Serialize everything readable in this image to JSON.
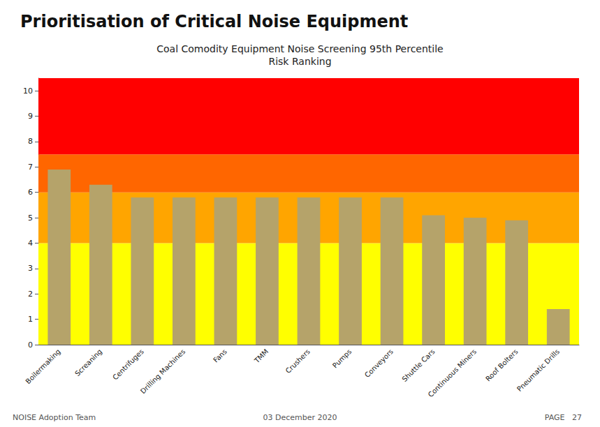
{
  "chart_data": {
    "type": "bar",
    "title": "Prioritisation of Critical Noise Equipment",
    "subtitle": "Coal Comodity Equipment Noise Screening 95th Percentile\nRisk Ranking",
    "categories": [
      "Boilermaking",
      "Screaning",
      "Centrifuges",
      "Drilling Machines",
      "Fans",
      "TMM",
      "Crushers",
      "Pumps",
      "Conveyors",
      "Shuttle Cars",
      "Continuous Miners",
      "Roof Bolters",
      "Pneumatic Drills"
    ],
    "values": [
      6.9,
      6.3,
      5.8,
      5.8,
      5.8,
      5.8,
      5.8,
      5.8,
      5.8,
      5.1,
      5.0,
      4.9,
      1.4
    ],
    "color": "#b5a36a",
    "ylim": [
      0,
      10.5
    ],
    "yticks": [
      0,
      1,
      2,
      3,
      4,
      5,
      6,
      7,
      8,
      9,
      10
    ],
    "grid": false,
    "bands": [
      {
        "from": 0,
        "to": 4,
        "color": "#ffff00"
      },
      {
        "from": 4,
        "to": 6,
        "color": "#ffa500"
      },
      {
        "from": 6,
        "to": 7.5,
        "color": "#ff6600"
      },
      {
        "from": 7.5,
        "to": 10.5,
        "color": "#ff0000"
      }
    ],
    "annotations": [
      "NOISE Adoption Team",
      "03 December 2020",
      "PAGE   27"
    ]
  }
}
